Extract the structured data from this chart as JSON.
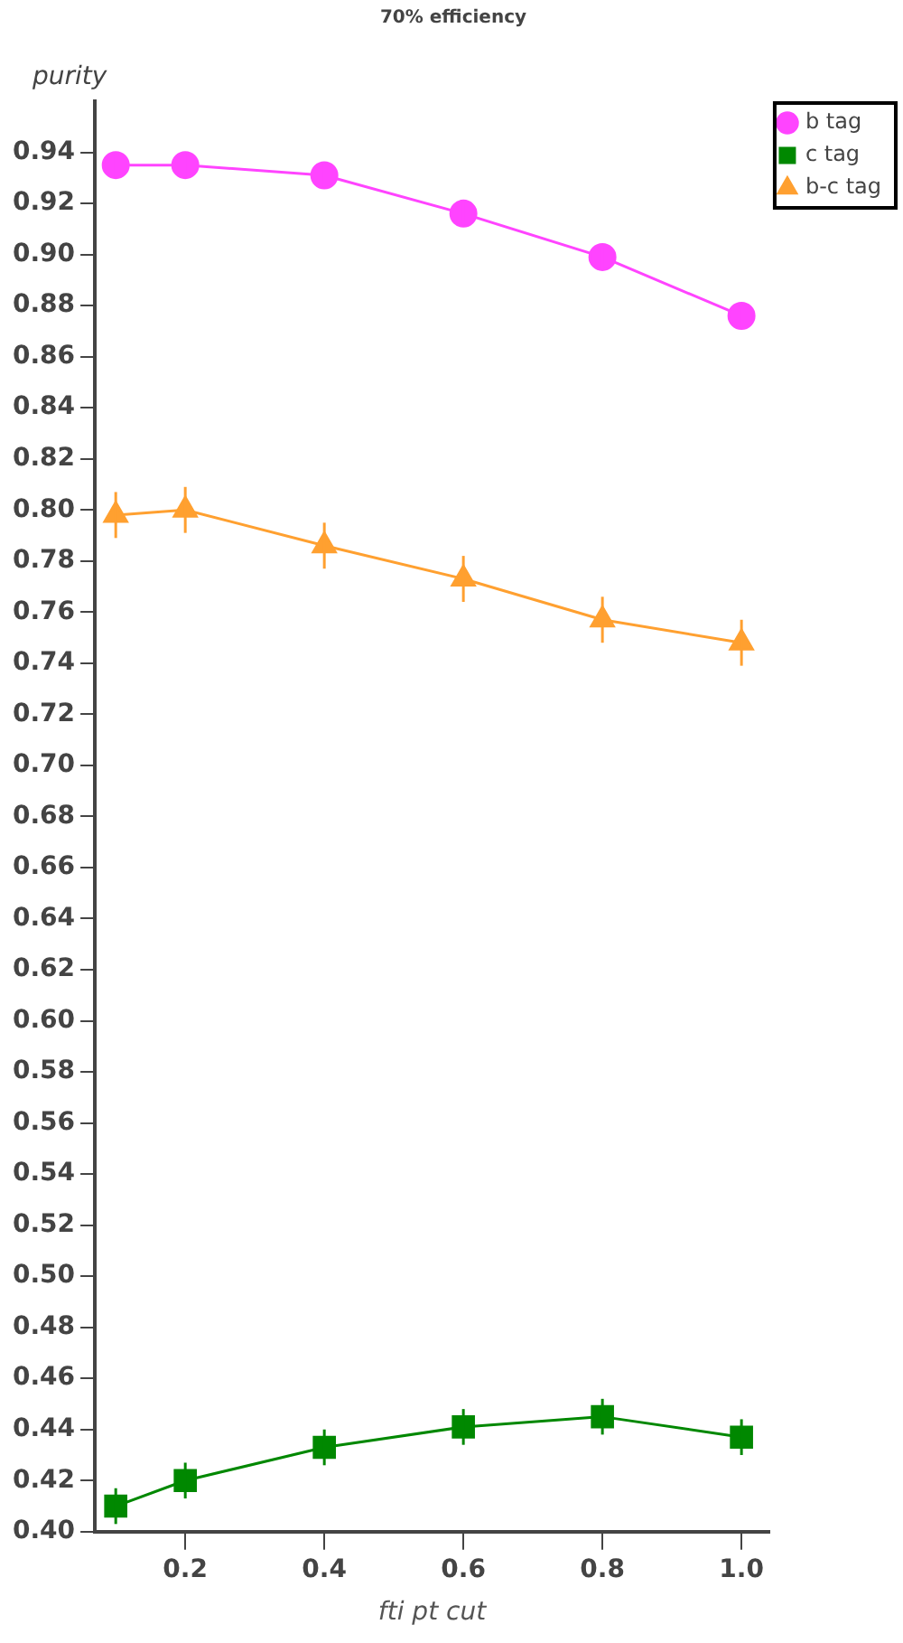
{
  "chart_data": {
    "type": "line",
    "title": "70% efficiency",
    "xlabel": "fti pt cut",
    "ylabel": "purity",
    "x": [
      0.1,
      0.2,
      0.4,
      0.6,
      0.8,
      1.0
    ],
    "series": [
      {
        "name": "b tag",
        "color": "#ff44ff",
        "marker": "circle",
        "values": [
          0.935,
          0.935,
          0.931,
          0.916,
          0.899,
          0.876
        ],
        "errors": [
          0.005,
          0.005,
          0.005,
          0.005,
          0.005,
          0.005
        ]
      },
      {
        "name": "c tag",
        "color": "#008800",
        "marker": "square",
        "values": [
          0.41,
          0.42,
          0.433,
          0.441,
          0.445,
          0.437
        ],
        "errors": [
          0.007,
          0.007,
          0.007,
          0.007,
          0.007,
          0.007
        ]
      },
      {
        "name": "b-c tag",
        "color": "#ffa030",
        "marker": "triangle",
        "values": [
          0.798,
          0.8,
          0.786,
          0.773,
          0.757,
          0.748
        ],
        "errors": [
          0.009,
          0.009,
          0.009,
          0.009,
          0.009,
          0.009
        ]
      }
    ],
    "xlim": [
      0.07,
      1.04
    ],
    "xticks": [
      0.2,
      0.4,
      0.6,
      0.8,
      {
        "value": 1.0,
        "label": "1.0"
      }
    ],
    "ylim": [
      0.4,
      0.96
    ],
    "yticks": [
      {
        "value": 0.4,
        "label": "0.40"
      },
      {
        "value": 0.42,
        "label": "0.42"
      },
      {
        "value": 0.44,
        "label": "0.44"
      },
      {
        "value": 0.46,
        "label": "0.46"
      },
      {
        "value": 0.48,
        "label": "0.48"
      },
      {
        "value": 0.5,
        "label": "0.50"
      },
      {
        "value": 0.52,
        "label": "0.52"
      },
      {
        "value": 0.54,
        "label": "0.54"
      },
      {
        "value": 0.56,
        "label": "0.56"
      },
      {
        "value": 0.58,
        "label": "0.58"
      },
      {
        "value": 0.6,
        "label": "0.60"
      },
      {
        "value": 0.62,
        "label": "0.62"
      },
      {
        "value": 0.64,
        "label": "0.64"
      },
      {
        "value": 0.66,
        "label": "0.66"
      },
      {
        "value": 0.68,
        "label": "0.68"
      },
      {
        "value": 0.7,
        "label": "0.70"
      },
      {
        "value": 0.72,
        "label": "0.72"
      },
      {
        "value": 0.74,
        "label": "0.74"
      },
      {
        "value": 0.76,
        "label": "0.76"
      },
      {
        "value": 0.78,
        "label": "0.78"
      },
      {
        "value": 0.8,
        "label": "0.80"
      },
      {
        "value": 0.82,
        "label": "0.82"
      },
      {
        "value": 0.84,
        "label": "0.84"
      },
      {
        "value": 0.86,
        "label": "0.86"
      },
      {
        "value": 0.88,
        "label": "0.88"
      },
      {
        "value": 0.9,
        "label": "0.90"
      },
      {
        "value": 0.92,
        "label": "0.92"
      },
      {
        "value": 0.94,
        "label": "0.94"
      }
    ],
    "grid": false,
    "legend": "top right",
    "line_style": "solid"
  }
}
